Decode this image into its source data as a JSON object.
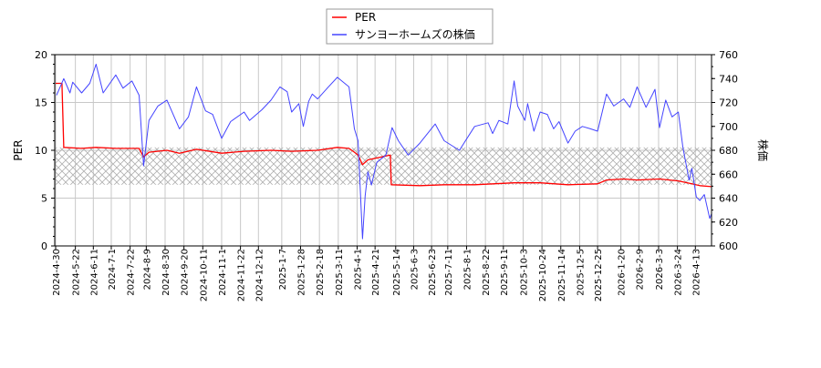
{
  "chart_data": {
    "type": "line",
    "title": "",
    "xlabel": "",
    "ylabel_left": "PER",
    "ylabel_right": "株価",
    "x_range": [
      "2024-04-30",
      "2026-05-01"
    ],
    "ylim_left": [
      0,
      20
    ],
    "ylim_right": [
      600,
      760
    ],
    "yticks_left": [
      "0",
      "5",
      "10",
      "15",
      "20"
    ],
    "yticks_right": [
      "600",
      "620",
      "640",
      "660",
      "680",
      "700",
      "720",
      "740",
      "760"
    ],
    "xticks": [
      "2024-4-30",
      "2024-5-22",
      "2024-6-11",
      "2024-7-1",
      "2024-7-22",
      "2024-8-9",
      "2024-8-30",
      "2024-9-20",
      "2024-10-11",
      "2024-11-1",
      "2024-11-22",
      "2024-12-12",
      "2025-1-7",
      "2025-1-28",
      "2025-2-18",
      "2025-3-11",
      "2025-4-1",
      "2025-4-21",
      "2025-5-14",
      "2025-6-3",
      "2025-6-23",
      "2025-7-11",
      "2025-8-1",
      "2025-8-22",
      "2025-9-11",
      "2025-10-3",
      "2025-10-24",
      "2025-11-14",
      "2025-12-5",
      "2025-12-25",
      "2026-1-20",
      "2026-2-9",
      "2026-3-3",
      "2026-3-24",
      "2026-4-13"
    ],
    "grid": true,
    "legend_placement": "top-center",
    "hatched_band_per": [
      6.4,
      10.3
    ],
    "series": [
      {
        "name": "PER",
        "axis": "left",
        "color": "#ff0000",
        "points": [
          [
            "2024-04-30",
            17.0
          ],
          [
            "2024-05-07",
            17.0
          ],
          [
            "2024-05-09",
            10.3
          ],
          [
            "2024-05-29",
            10.2
          ],
          [
            "2024-06-14",
            10.3
          ],
          [
            "2024-07-06",
            10.2
          ],
          [
            "2024-08-01",
            10.2
          ],
          [
            "2024-08-06",
            9.3
          ],
          [
            "2024-08-12",
            9.8
          ],
          [
            "2024-09-01",
            10.0
          ],
          [
            "2024-09-15",
            9.7
          ],
          [
            "2024-10-04",
            10.1
          ],
          [
            "2024-11-01",
            9.7
          ],
          [
            "2024-11-26",
            9.9
          ],
          [
            "2024-12-26",
            10.0
          ],
          [
            "2025-01-18",
            9.9
          ],
          [
            "2025-02-16",
            10.0
          ],
          [
            "2025-03-10",
            10.3
          ],
          [
            "2025-03-23",
            10.2
          ],
          [
            "2025-03-29",
            9.8
          ],
          [
            "2025-04-02",
            9.5
          ],
          [
            "2025-04-07",
            8.5
          ],
          [
            "2025-04-13",
            9.0
          ],
          [
            "2025-04-23",
            9.2
          ],
          [
            "2025-05-03",
            9.4
          ],
          [
            "2025-05-08",
            9.5
          ],
          [
            "2025-05-09",
            6.4
          ],
          [
            "2025-06-10",
            6.3
          ],
          [
            "2025-07-07",
            6.4
          ],
          [
            "2025-08-10",
            6.4
          ],
          [
            "2025-09-23",
            6.6
          ],
          [
            "2025-10-22",
            6.6
          ],
          [
            "2025-11-22",
            6.4
          ],
          [
            "2025-12-25",
            6.5
          ],
          [
            "2026-01-04",
            6.9
          ],
          [
            "2026-01-23",
            7.0
          ],
          [
            "2026-02-07",
            6.9
          ],
          [
            "2026-03-04",
            7.0
          ],
          [
            "2026-03-25",
            6.8
          ],
          [
            "2026-04-09",
            6.5
          ],
          [
            "2026-04-18",
            6.3
          ],
          [
            "2026-05-01",
            6.2
          ]
        ]
      },
      {
        "name": "サンヨーホームズの株価",
        "axis": "right",
        "color": "#4444ff",
        "points": [
          [
            "2024-05-01",
            726
          ],
          [
            "2024-05-09",
            740
          ],
          [
            "2024-05-16",
            728
          ],
          [
            "2024-05-19",
            737
          ],
          [
            "2024-05-29",
            728
          ],
          [
            "2024-06-07",
            736
          ],
          [
            "2024-06-14",
            752
          ],
          [
            "2024-06-22",
            728
          ],
          [
            "2024-07-06",
            743
          ],
          [
            "2024-07-14",
            732
          ],
          [
            "2024-07-24",
            738
          ],
          [
            "2024-08-01",
            726
          ],
          [
            "2024-08-06",
            667
          ],
          [
            "2024-08-12",
            705
          ],
          [
            "2024-08-22",
            717
          ],
          [
            "2024-09-01",
            722
          ],
          [
            "2024-09-15",
            698
          ],
          [
            "2024-09-25",
            708
          ],
          [
            "2024-10-04",
            733
          ],
          [
            "2024-10-14",
            713
          ],
          [
            "2024-10-22",
            710
          ],
          [
            "2024-11-01",
            690
          ],
          [
            "2024-11-11",
            704
          ],
          [
            "2024-11-26",
            712
          ],
          [
            "2024-12-02",
            705
          ],
          [
            "2024-12-16",
            714
          ],
          [
            "2024-12-26",
            722
          ],
          [
            "2025-01-05",
            733
          ],
          [
            "2025-01-13",
            729
          ],
          [
            "2025-01-18",
            712
          ],
          [
            "2025-01-26",
            719
          ],
          [
            "2025-01-31",
            700
          ],
          [
            "2025-02-06",
            721
          ],
          [
            "2025-02-10",
            727
          ],
          [
            "2025-02-16",
            723
          ],
          [
            "2025-02-28",
            733
          ],
          [
            "2025-03-10",
            741
          ],
          [
            "2025-03-23",
            733
          ],
          [
            "2025-03-29",
            698
          ],
          [
            "2025-04-02",
            688
          ],
          [
            "2025-04-07",
            606
          ],
          [
            "2025-04-10",
            642
          ],
          [
            "2025-04-13",
            662
          ],
          [
            "2025-04-17",
            651
          ],
          [
            "2025-04-23",
            670
          ],
          [
            "2025-05-03",
            676
          ],
          [
            "2025-05-10",
            699
          ],
          [
            "2025-05-17",
            688
          ],
          [
            "2025-05-28",
            676
          ],
          [
            "2025-06-10",
            686
          ],
          [
            "2025-06-27",
            702
          ],
          [
            "2025-07-07",
            688
          ],
          [
            "2025-07-24",
            680
          ],
          [
            "2025-08-10",
            700
          ],
          [
            "2025-08-25",
            703
          ],
          [
            "2025-08-30",
            694
          ],
          [
            "2025-09-06",
            705
          ],
          [
            "2025-09-16",
            702
          ],
          [
            "2025-09-23",
            738
          ],
          [
            "2025-09-27",
            717
          ],
          [
            "2025-10-05",
            705
          ],
          [
            "2025-10-08",
            719
          ],
          [
            "2025-10-15",
            696
          ],
          [
            "2025-10-22",
            712
          ],
          [
            "2025-10-30",
            710
          ],
          [
            "2025-11-06",
            698
          ],
          [
            "2025-11-12",
            704
          ],
          [
            "2025-11-22",
            686
          ],
          [
            "2025-11-30",
            696
          ],
          [
            "2025-12-08",
            700
          ],
          [
            "2025-12-17",
            698
          ],
          [
            "2025-12-25",
            696
          ],
          [
            "2026-01-04",
            727
          ],
          [
            "2026-01-12",
            717
          ],
          [
            "2026-01-23",
            723
          ],
          [
            "2026-01-30",
            716
          ],
          [
            "2026-02-07",
            733
          ],
          [
            "2026-02-17",
            716
          ],
          [
            "2026-02-27",
            731
          ],
          [
            "2026-03-04",
            699
          ],
          [
            "2026-03-11",
            722
          ],
          [
            "2026-03-18",
            708
          ],
          [
            "2026-03-25",
            712
          ],
          [
            "2026-03-30",
            683
          ],
          [
            "2026-04-06",
            655
          ],
          [
            "2026-04-09",
            665
          ],
          [
            "2026-04-14",
            641
          ],
          [
            "2026-04-18",
            638
          ],
          [
            "2026-04-23",
            643
          ],
          [
            "2026-04-29",
            623
          ],
          [
            "2026-05-01",
            627
          ]
        ]
      }
    ]
  }
}
